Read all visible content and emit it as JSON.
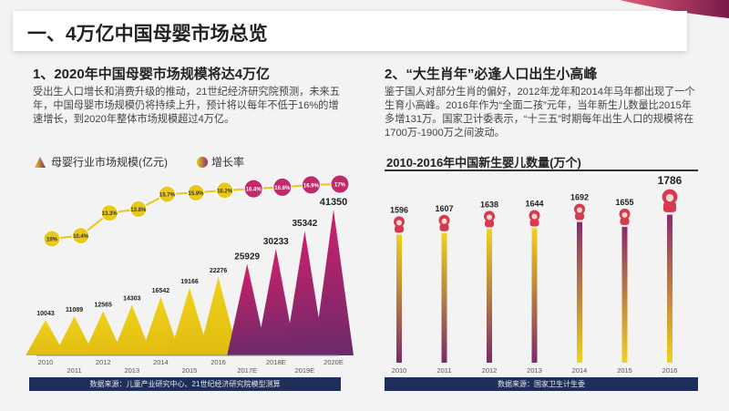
{
  "header": {
    "title": "一、4万亿中国母婴市场总览"
  },
  "left": {
    "heading": "1、2020年中国母婴市场规模将达4万亿",
    "paragraph": "受出生人口增长和消费升级的推动，21世纪经济研究院预测，未来五年，中国母婴市场规模仍将持续上升，预计将以每年不低于16%的增速增长，到2020年整体市场规模超过4万亿。",
    "source": "数据来源：儿童产业研究中心、21世纪经济研究院模型测算"
  },
  "right": {
    "heading": "2、“大生肖年”必逢人口出生小高峰",
    "paragraph": "鉴于国人对部分生肖的偏好，2012年龙年和2014年马年都出现了一个生育小高峰。2016年作为“全面二孩”元年，当年新生儿数量比2015年多增131万。国家卫计委表示，“十三五”时期每年出生人口的规模将在1700万-1900万之间波动。",
    "chart_title": "2010-2016年中国新生婴儿数量(万个)",
    "source": "数据来源：国家卫生计生委"
  },
  "colors": {
    "yellow": "#e8c81a",
    "purple": "#8b2a6b",
    "magenta": "#c8246a",
    "navy": "#1f2e5a"
  },
  "chart_data": [
    {
      "type": "bar",
      "categories": [
        "2010",
        "2011",
        "2012",
        "2013",
        "2014",
        "2015",
        "2016",
        "2017E",
        "2018E",
        "2019E",
        "2020E"
      ],
      "series": [
        {
          "name": "母婴行业市场规模(亿元)",
          "values": [
            10043,
            11089,
            12565,
            14303,
            16542,
            19166,
            22276,
            25929,
            30233,
            35342,
            41350
          ]
        },
        {
          "name": "增长率",
          "values": [
            "10%",
            "10.4%",
            "13.3%",
            "13.8%",
            "15.7%",
            "15.9%",
            "16.2%",
            "16.4%",
            "16.6%",
            "16.9%",
            "17%"
          ]
        }
      ],
      "legend": "top-left"
    },
    {
      "type": "bar",
      "title": "2010-2016年中国新生婴儿数量(万个)",
      "categories": [
        "2010",
        "2011",
        "2012",
        "2013",
        "2014",
        "2015",
        "2016"
      ],
      "values": [
        1596,
        1607,
        1638,
        1644,
        1692,
        1655,
        1786
      ]
    }
  ]
}
